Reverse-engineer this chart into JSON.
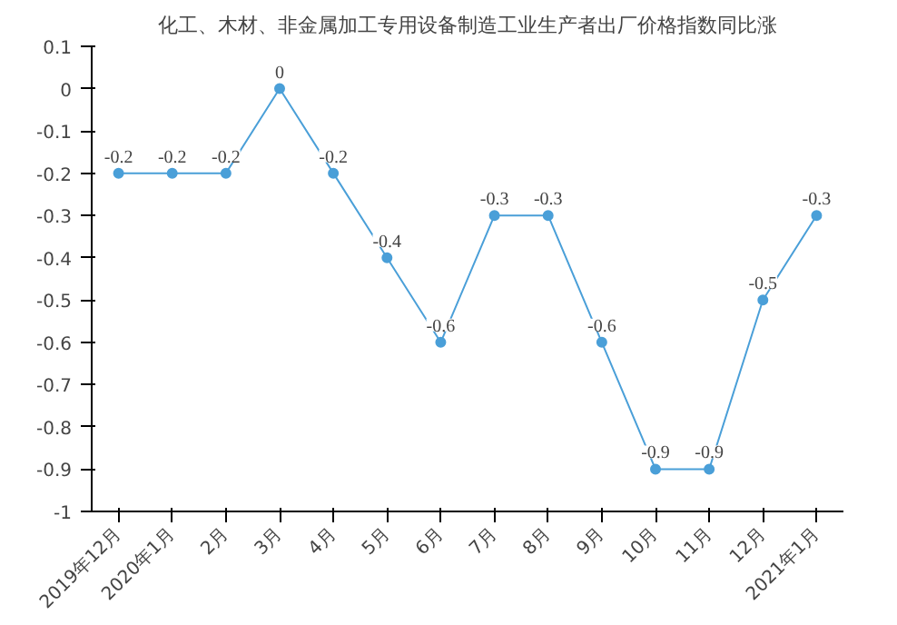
{
  "chart_data": {
    "type": "line",
    "title": "化工、木材、非金属加工专用设备制造工业生产者出厂价格指数同比涨",
    "categories": [
      "2019年12月",
      "2020年1月",
      "2月",
      "3月",
      "4月",
      "5月",
      "6月",
      "7月",
      "8月",
      "9月",
      "10月",
      "11月",
      "12月",
      "2021年1月"
    ],
    "series": [
      {
        "color": "#4a9fd8",
        "values": [
          -0.2,
          -0.2,
          -0.2,
          0,
          -0.2,
          -0.4,
          -0.6,
          -0.3,
          -0.3,
          -0.6,
          -0.9,
          -0.9,
          -0.5,
          -0.3
        ]
      }
    ],
    "ylim": [
      -1,
      0.1
    ],
    "yticks": [
      -1,
      -0.9,
      -0.8,
      -0.7,
      -0.6,
      -0.5,
      -0.4,
      -0.3,
      -0.2,
      -0.1,
      0,
      0.1
    ],
    "data_labels": true,
    "marker": "circle",
    "grid": false
  }
}
